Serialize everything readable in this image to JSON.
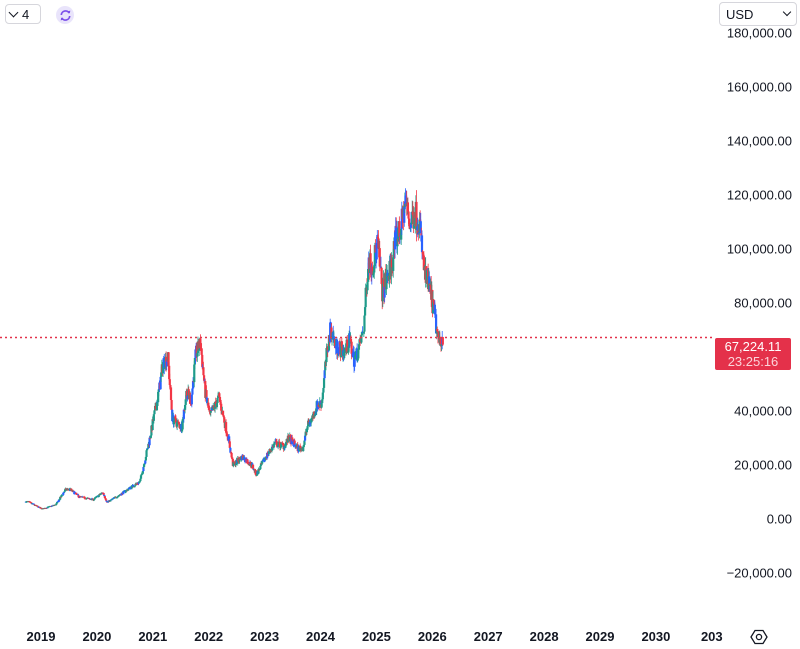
{
  "toolbar": {
    "interval_label": "4",
    "currency_label": "USD"
  },
  "price_line": {
    "price": "67,224.11",
    "countdown": "23:25:16",
    "color": "#e4314a"
  },
  "colors": {
    "up": "#1f9b8a",
    "down": "#f23645",
    "mid": "#2962ff"
  },
  "chart_data": {
    "type": "candlestick",
    "title": "",
    "xlabel": "",
    "ylabel": "",
    "x_ticks": [
      "2019",
      "2020",
      "2021",
      "2022",
      "2023",
      "2024",
      "2025",
      "2026",
      "2027",
      "2028",
      "2029",
      "2030",
      "203"
    ],
    "y_ticks": [
      "180,000.00",
      "160,000.00",
      "140,000.00",
      "120,000.00",
      "100,000.00",
      "80,000.00",
      "40,000.00",
      "20,000.00",
      "0.00",
      "−20,000.00"
    ],
    "ylim": [
      -40000,
      190000
    ],
    "current_price": 67224.11,
    "series": [
      {
        "points": [
          [
            "2018-10",
            6400
          ],
          [
            "2019-01",
            3700
          ],
          [
            "2019-04",
            5300
          ],
          [
            "2019-06",
            10800
          ],
          [
            "2019-07",
            11000
          ],
          [
            "2019-09",
            8200
          ],
          [
            "2019-12",
            7200
          ],
          [
            "2020-02",
            9800
          ],
          [
            "2020-03",
            6200
          ],
          [
            "2020-06",
            9300
          ],
          [
            "2020-08",
            11700
          ],
          [
            "2020-10",
            13800
          ],
          [
            "2020-12",
            29000
          ],
          [
            "2021-02",
            47000
          ],
          [
            "2021-03",
            58000
          ],
          [
            "2021-04",
            60000
          ],
          [
            "2021-05",
            37000
          ],
          [
            "2021-07",
            34000
          ],
          [
            "2021-08",
            47000
          ],
          [
            "2021-09",
            44000
          ],
          [
            "2021-10",
            61000
          ],
          [
            "2021-11",
            65000
          ],
          [
            "2021-12",
            47000
          ],
          [
            "2022-01",
            38000
          ],
          [
            "2022-03",
            45000
          ],
          [
            "2022-05",
            30000
          ],
          [
            "2022-06",
            20000
          ],
          [
            "2022-08",
            23000
          ],
          [
            "2022-10",
            20000
          ],
          [
            "2022-11",
            16500
          ],
          [
            "2023-01",
            23000
          ],
          [
            "2023-03",
            28000
          ],
          [
            "2023-05",
            27000
          ],
          [
            "2023-06",
            30000
          ],
          [
            "2023-08",
            26000
          ],
          [
            "2023-09",
            26500
          ],
          [
            "2023-10",
            34500
          ],
          [
            "2023-11",
            37500
          ],
          [
            "2023-12",
            42000
          ],
          [
            "2024-01",
            43000
          ],
          [
            "2024-02",
            60000
          ],
          [
            "2024-03",
            71000
          ],
          [
            "2024-04",
            64000
          ],
          [
            "2024-06",
            62000
          ],
          [
            "2024-07",
            66000
          ],
          [
            "2024-08",
            59000
          ],
          [
            "2024-09",
            63000
          ],
          [
            "2024-10",
            70000
          ],
          [
            "2024-11",
            96000
          ],
          [
            "2024-12",
            94000
          ],
          [
            "2025-01",
            102000
          ],
          [
            "2025-02",
            84000
          ],
          [
            "2025-04",
            94000
          ],
          [
            "2025-05",
            104000
          ],
          [
            "2025-06",
            107000
          ],
          [
            "2025-07",
            118000
          ],
          [
            "2025-08",
            109000
          ],
          [
            "2025-09",
            114000
          ],
          [
            "2025-10",
            110000
          ],
          [
            "2025-11",
            91000
          ],
          [
            "2025-12",
            87000
          ],
          [
            "2026-01",
            78000
          ],
          [
            "2026-02",
            66000
          ],
          [
            "2026-03",
            67224.11
          ]
        ]
      }
    ]
  }
}
